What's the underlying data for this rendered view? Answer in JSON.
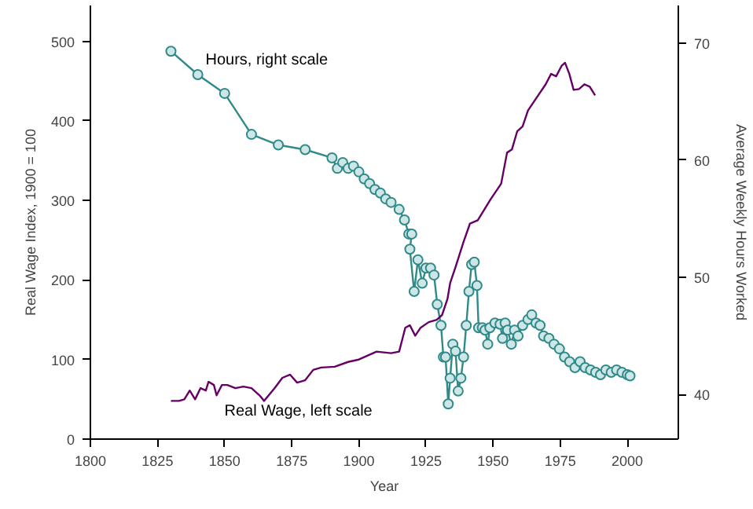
{
  "chart_data": {
    "type": "line",
    "xlabel": "Year",
    "ylabel": "Real Wage Index, 1900 = 100",
    "y2label": "Average Weekly Hours Worked",
    "xlim": [
      1800,
      2019
    ],
    "xticks": [
      1800,
      1825,
      1850,
      1875,
      1900,
      1925,
      1950,
      1975,
      2000
    ],
    "ylim": [
      0,
      545
    ],
    "yticks": [
      0,
      100,
      200,
      300,
      400,
      500
    ],
    "y2lim": [
      36.2,
      73.2
    ],
    "y2ticks": [
      40,
      50,
      60,
      70
    ],
    "grid": false,
    "line_style": "solid",
    "series": [
      {
        "name": "Hours, right scale",
        "color": "#2f8a8a",
        "axis": "y2",
        "marker": "circle",
        "x": [
          1830,
          1840,
          1850,
          1860,
          1870,
          1880,
          1890,
          1892,
          1894,
          1896,
          1898,
          1900,
          1902,
          1904,
          1906,
          1908,
          1910,
          1912,
          1915,
          1917,
          1918.6,
          1919.7,
          1919,
          1920.6,
          1922,
          1923.6,
          1925,
          1926.7,
          1928,
          1929.2,
          1930.6,
          1931.5,
          1932.3,
          1933.3,
          1934,
          1935,
          1936,
          1937,
          1938,
          1939,
          1940,
          1941,
          1942,
          1943,
          1944,
          1944.6,
          1946,
          1947,
          1948,
          1948.8,
          1950.7,
          1952.6,
          1953.5,
          1954.5,
          1955.4,
          1956.8,
          1958,
          1959.3,
          1961,
          1963,
          1964.4,
          1966,
          1967.5,
          1968.8,
          1970.8,
          1972.7,
          1974.7,
          1976.6,
          1978.5,
          1980.5,
          1982.4,
          1984.3,
          1986.3,
          1988.2,
          1990,
          1992,
          1994,
          1996,
          1998,
          2000,
          2001
        ],
        "values": [
          69.3,
          67.3,
          65.7,
          62.2,
          61.3,
          60.9,
          60.2,
          59.3,
          59.8,
          59.3,
          59.5,
          59.0,
          58.4,
          58.0,
          57.5,
          57.2,
          56.7,
          56.4,
          55.8,
          54.9,
          53.7,
          53.7,
          52.4,
          48.8,
          51.5,
          49.5,
          50.8,
          50.8,
          50.2,
          47.7,
          45.9,
          43.2,
          43.2,
          39.2,
          41.4,
          44.3,
          43.7,
          40.3,
          41.4,
          43.2,
          45.9,
          48.8,
          51.1,
          51.3,
          49.3,
          45.7,
          45.7,
          45.5,
          44.3,
          45.7,
          46.1,
          46.0,
          44.8,
          46.1,
          45.5,
          44.3,
          45.5,
          45.0,
          45.9,
          46.4,
          46.8,
          46.1,
          45.9,
          45.0,
          44.8,
          44.3,
          43.9,
          43.2,
          42.8,
          42.3,
          42.8,
          42.3,
          42.1,
          41.9,
          41.7,
          42.1,
          41.9,
          42.1,
          41.9,
          41.7,
          41.6
        ]
      },
      {
        "name": "Real Wage, left scale",
        "color": "#660066",
        "marker": "none",
        "x": [
          1830,
          1833,
          1835,
          1837,
          1839,
          1841,
          1843,
          1844,
          1846,
          1847,
          1849,
          1851,
          1854,
          1857,
          1860,
          1863,
          1864.7,
          1868.6,
          1871.5,
          1874.4,
          1877,
          1880,
          1883,
          1886,
          1891,
          1896,
          1900,
          1906.6,
          1912,
          1915,
          1917.3,
          1919,
          1921,
          1923,
          1926,
          1929,
          1931,
          1933,
          1934,
          1936,
          1939,
          1941.4,
          1944.3,
          1949,
          1953,
          1955.2,
          1957,
          1959,
          1961,
          1963,
          1967,
          1969.6,
          1971.6,
          1973.5,
          1975.5,
          1976.8,
          1978.4,
          1980,
          1982,
          1984,
          1986,
          1988
        ],
        "values": [
          48,
          48,
          50,
          61,
          50,
          64,
          61,
          72,
          68,
          55,
          68,
          68,
          64,
          66,
          64,
          55,
          48,
          64,
          77,
          81,
          71,
          74,
          87,
          90,
          91,
          97,
          100,
          110,
          108,
          110,
          140,
          143,
          130,
          140,
          147,
          150,
          156,
          176,
          196,
          216,
          248,
          271,
          275,
          301,
          321,
          360,
          364,
          387,
          393,
          413,
          433,
          446,
          459,
          456,
          469,
          473,
          459,
          439,
          440,
          446,
          443,
          432
        ]
      }
    ]
  }
}
